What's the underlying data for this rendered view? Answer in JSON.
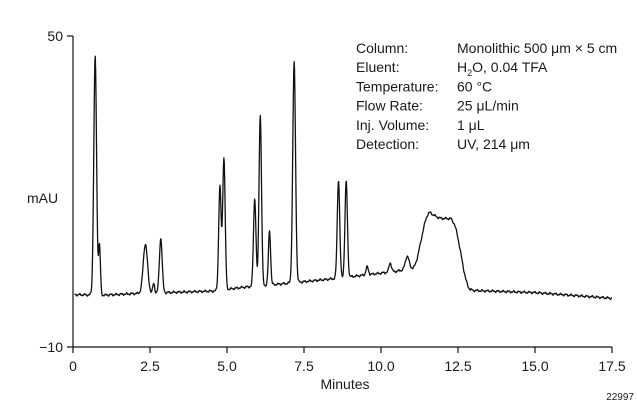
{
  "chart_data": {
    "type": "line",
    "title": "",
    "xlabel": "Minutes",
    "ylabel": "mAU",
    "xlim": [
      0,
      17.5
    ],
    "ylim": [
      -10,
      50
    ],
    "x_ticks": [
      {
        "value": 0,
        "label": "0"
      },
      {
        "value": 2.5,
        "label": "2.5"
      },
      {
        "value": 5.0,
        "label": "5.0"
      },
      {
        "value": 7.5,
        "label": "7.5"
      },
      {
        "value": 10.0,
        "label": "10.0"
      },
      {
        "value": 12.5,
        "label": "12.5"
      },
      {
        "value": 15.0,
        "label": "15.0"
      },
      {
        "value": 17.5,
        "label": "17.5"
      }
    ],
    "y_ticks": [
      {
        "value": 50,
        "label": "50"
      },
      {
        "value": -10,
        "label": "−10"
      }
    ],
    "grid": false,
    "legend": "none",
    "line_color": "#111111",
    "baseline": 0,
    "peaks": [
      {
        "t": 0.72,
        "h": 46.0,
        "w": 0.045
      },
      {
        "t": 0.86,
        "h": 9.5,
        "w": 0.03
      },
      {
        "t": 2.35,
        "h": 9.5,
        "w": 0.07
      },
      {
        "t": 2.62,
        "h": 1.8,
        "w": 0.03
      },
      {
        "t": 2.85,
        "h": 10.5,
        "w": 0.045
      },
      {
        "t": 4.77,
        "h": 20.0,
        "w": 0.04
      },
      {
        "t": 4.9,
        "h": 25.5,
        "w": 0.04
      },
      {
        "t": 5.9,
        "h": 17.0,
        "w": 0.04
      },
      {
        "t": 6.08,
        "h": 33.0,
        "w": 0.04
      },
      {
        "t": 6.38,
        "h": 10.5,
        "w": 0.035
      },
      {
        "t": 7.18,
        "h": 42.5,
        "w": 0.045
      },
      {
        "t": 8.62,
        "h": 19.0,
        "w": 0.04
      },
      {
        "t": 8.87,
        "h": 18.5,
        "w": 0.04
      },
      {
        "t": 9.55,
        "h": 1.5,
        "w": 0.04
      },
      {
        "t": 10.3,
        "h": 1.8,
        "w": 0.04
      },
      {
        "t": 10.85,
        "h": 2.5,
        "w": 0.06
      }
    ],
    "hump": {
      "start": 11.0,
      "rise_end": 11.6,
      "plateau_end": 12.3,
      "end": 12.9,
      "height": 12.0
    },
    "drift": [
      {
        "t": 0,
        "y": 0.1
      },
      {
        "t": 1.0,
        "y": 0.0
      },
      {
        "t": 2.0,
        "y": 0.3
      },
      {
        "t": 3.0,
        "y": 0.5
      },
      {
        "t": 4.6,
        "y": 0.8
      },
      {
        "t": 5.5,
        "y": 1.5
      },
      {
        "t": 7.0,
        "y": 2.3
      },
      {
        "t": 8.5,
        "y": 3.2
      },
      {
        "t": 10.5,
        "y": 4.6
      },
      {
        "t": 11.0,
        "y": 5.2
      },
      {
        "t": 13.0,
        "y": 0.9
      },
      {
        "t": 15.0,
        "y": 0.5
      },
      {
        "t": 17.5,
        "y": -0.6
      }
    ]
  },
  "conditions": [
    {
      "label": "Column:",
      "value": "Monolithic 500 μm × 5 cm"
    },
    {
      "label": "Eluent:",
      "value": "H2O, 0.04 TFA",
      "value_pre": "H",
      "value_sub": "2",
      "value_post": "O, 0.04 TFA"
    },
    {
      "label": "Temperature:",
      "value": "60 °C"
    },
    {
      "label": "Flow Rate:",
      "value": "25 μL/min"
    },
    {
      "label": "Inj. Volume:",
      "value": "1 μL"
    },
    {
      "label": "Detection:",
      "value": "UV, 214 μm"
    }
  ],
  "corner_id": "22997"
}
